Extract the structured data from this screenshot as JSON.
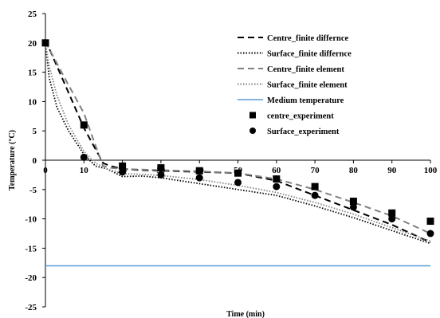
{
  "chart_data": {
    "type": "line",
    "xlabel": "Time (min)",
    "ylabel": "Temperature (°C)",
    "xlim": [
      0,
      100
    ],
    "ylim": [
      -25,
      25
    ],
    "x_ticks": [
      "0",
      "10",
      "20",
      "30",
      "40",
      "50",
      "60",
      "70",
      "80",
      "90",
      "100"
    ],
    "y_ticks": [
      "25",
      "20",
      "15",
      "10",
      "5",
      "0",
      "-5",
      "-10",
      "-15",
      "-20",
      "-25"
    ],
    "grid": false,
    "legend_position": "top-right",
    "series": [
      {
        "name": "Centre_finite differnce",
        "style": "dashed",
        "color": "#000000",
        "x": [
          0,
          5,
          10,
          15,
          17,
          20,
          25,
          30,
          40,
          50,
          60,
          70,
          80,
          90,
          100
        ],
        "y": [
          20.5,
          13,
          5.5,
          -0.5,
          -1,
          -1.5,
          -1.7,
          -1.8,
          -2.0,
          -2.2,
          -3.5,
          -6,
          -8.5,
          -11,
          -14
        ]
      },
      {
        "name": "Surface_finite differnce",
        "style": "dotted",
        "color": "#000000",
        "x": [
          0,
          1,
          3,
          6,
          10,
          13,
          16,
          20,
          25,
          30,
          40,
          50,
          60,
          70,
          80,
          90,
          100
        ],
        "y": [
          20,
          14,
          9,
          5,
          1,
          -1,
          -1.5,
          -2.8,
          -2.7,
          -3,
          -4,
          -5,
          -6,
          -7.8,
          -9.8,
          -12,
          -14.2
        ]
      },
      {
        "name": "Centre_finite element",
        "style": "dashed",
        "color": "#808080",
        "x": [
          0,
          5,
          10,
          13,
          15,
          17,
          20,
          25,
          30,
          40,
          50,
          60,
          70,
          80,
          90,
          100
        ],
        "y": [
          20.2,
          14,
          8,
          2.5,
          -1,
          -1.3,
          -1.5,
          -1.6,
          -1.7,
          -1.9,
          -2.2,
          -3.2,
          -5,
          -7.2,
          -9.5,
          -12.5
        ]
      },
      {
        "name": "Surface_finite element",
        "style": "dotted",
        "color": "#808080",
        "x": [
          0,
          1,
          3,
          6,
          10,
          13,
          16,
          20,
          25,
          30,
          40,
          50,
          60,
          70,
          80,
          90,
          100
        ],
        "y": [
          20,
          16,
          11,
          6,
          1.5,
          -0.5,
          -1.5,
          -2.3,
          -2.4,
          -2.6,
          -3.3,
          -4.3,
          -5.5,
          -7.2,
          -9.2,
          -11.5,
          -13.8
        ]
      },
      {
        "name": "Medium temperature",
        "style": "solid",
        "color": "#5b9bd5",
        "x": [
          0,
          100
        ],
        "y": [
          -18,
          -18
        ]
      },
      {
        "name": "centre_experiment",
        "style": "square-marker",
        "color": "#000000",
        "x": [
          0,
          10,
          20,
          30,
          40,
          50,
          60,
          70,
          80,
          90,
          100
        ],
        "y": [
          20,
          6,
          -1,
          -1.3,
          -1.8,
          -2.2,
          -3.2,
          -4.5,
          -7,
          -9,
          -10.4
        ]
      },
      {
        "name": "Surface_experiment",
        "style": "circle-marker",
        "color": "#000000",
        "x": [
          0,
          10,
          20,
          30,
          40,
          50,
          60,
          70,
          80,
          90,
          100
        ],
        "y": [
          20,
          0.5,
          -2,
          -2.5,
          -3,
          -3.8,
          -4.5,
          -6,
          -8,
          -10,
          -12.5
        ]
      }
    ]
  }
}
